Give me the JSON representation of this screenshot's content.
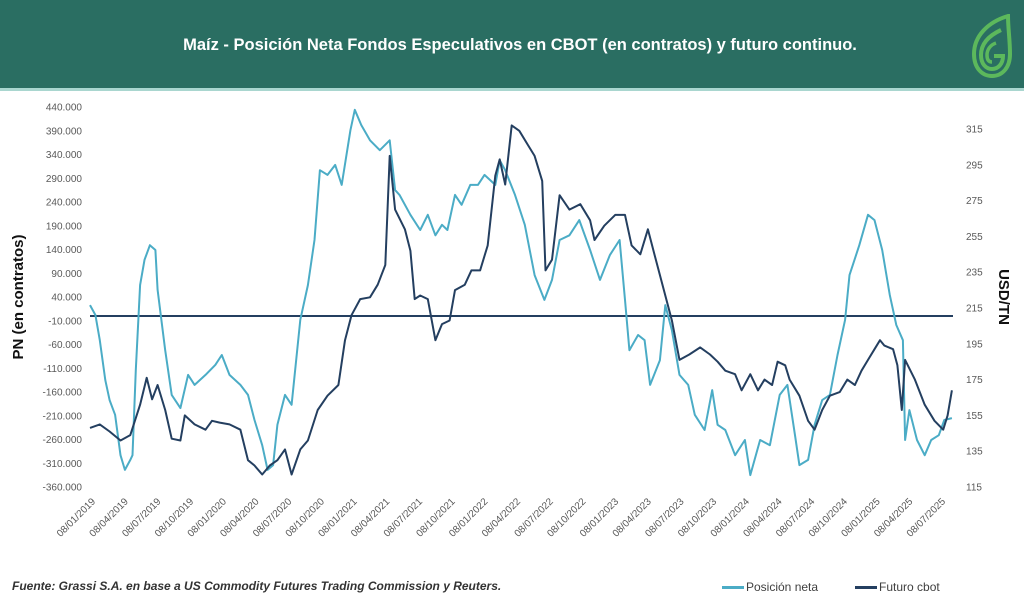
{
  "header": {
    "title": "Maíz - Posición Neta Fondos Especulativos en CBOT (en contratos) y futuro continuo.",
    "logo_text": "G"
  },
  "footer": {
    "source": "Fuente: Grassi S.A. en base a US Commodity  Futures Trading Commission y Reuters."
  },
  "colors": {
    "header_bg": "#2a6e62",
    "posicion": "#4bacc6",
    "futuro": "#243f60",
    "logo": "#5cb85c"
  },
  "chart_data": {
    "type": "line",
    "title": "Maíz - Posición Neta Fondos Especulativos en CBOT (en contratos) y futuro continuo.",
    "x_unit": "months since 08/01/2019",
    "xlim": [
      0,
      79.2
    ],
    "x_tick_labels": [
      "08/01/2019",
      "08/04/2019",
      "08/07/2019",
      "08/10/2019",
      "08/01/2020",
      "08/04/2020",
      "08/07/2020",
      "08/10/2020",
      "08/01/2021",
      "08/04/2021",
      "08/07/2021",
      "08/10/2021",
      "08/01/2022",
      "08/04/2022",
      "08/07/2022",
      "08/10/2022",
      "08/01/2023",
      "08/04/2023",
      "08/07/2023",
      "08/10/2023",
      "08/01/2024",
      "08/04/2024",
      "08/07/2024",
      "08/10/2024",
      "08/01/2025",
      "08/04/2025",
      "08/07/2025"
    ],
    "ylabel_left": "PN  (en contratos)",
    "ylabel_right": "USD/TN",
    "ylim_left": [
      -360000,
      440000
    ],
    "yticks_left": [
      "440.000",
      "390.000",
      "340.000",
      "290.000",
      "240.000",
      "190.000",
      "140.000",
      "90.000",
      "40.000",
      "-10.000",
      "-60.000",
      "-110.000",
      "-160.000",
      "-210.000",
      "-260.000",
      "-310.000",
      "-360.000"
    ],
    "ylim_right": [
      115,
      327.3
    ],
    "yticks_right": [
      "315",
      "295",
      "275",
      "255",
      "235",
      "215",
      "195",
      "175",
      "155",
      "135",
      "115"
    ],
    "reference_line_left": 0,
    "legend_position": "bottom-right",
    "series": [
      {
        "name": "Posición neta",
        "axis": "left",
        "unit": "thousand contracts",
        "points": [
          [
            0,
            23
          ],
          [
            0.5,
            2
          ],
          [
            0.9,
            -51
          ],
          [
            1.4,
            -135
          ],
          [
            1.8,
            -177
          ],
          [
            2.3,
            -208
          ],
          [
            2.8,
            -293
          ],
          [
            3.2,
            -324
          ],
          [
            3.7,
            -303
          ],
          [
            3.9,
            -293
          ],
          [
            4.2,
            -114
          ],
          [
            4.6,
            65
          ],
          [
            5.0,
            118
          ],
          [
            5.5,
            149
          ],
          [
            6.0,
            139
          ],
          [
            6.2,
            55
          ],
          [
            6.9,
            -72
          ],
          [
            7.5,
            -166
          ],
          [
            8.3,
            -194
          ],
          [
            9.0,
            -124
          ],
          [
            9.6,
            -145
          ],
          [
            10.6,
            -124
          ],
          [
            11.5,
            -103
          ],
          [
            12.1,
            -82
          ],
          [
            12.8,
            -124
          ],
          [
            13.8,
            -145
          ],
          [
            14.5,
            -166
          ],
          [
            15.1,
            -219
          ],
          [
            15.8,
            -272
          ],
          [
            16.3,
            -324
          ],
          [
            16.8,
            -314
          ],
          [
            17.2,
            -229
          ],
          [
            17.9,
            -166
          ],
          [
            18.5,
            -187
          ],
          [
            19.3,
            -8
          ],
          [
            20.0,
            65
          ],
          [
            20.6,
            160
          ],
          [
            21.1,
            307
          ],
          [
            21.8,
            297
          ],
          [
            22.5,
            318
          ],
          [
            23.1,
            276
          ],
          [
            23.9,
            391
          ],
          [
            24.3,
            434
          ],
          [
            24.9,
            402
          ],
          [
            25.7,
            370
          ],
          [
            26.6,
            349
          ],
          [
            27.5,
            370
          ],
          [
            28.0,
            265
          ],
          [
            28.4,
            255
          ],
          [
            29.4,
            213
          ],
          [
            30.3,
            181
          ],
          [
            31.0,
            213
          ],
          [
            31.7,
            170
          ],
          [
            32.3,
            192
          ],
          [
            32.8,
            181
          ],
          [
            33.5,
            255
          ],
          [
            34.1,
            234
          ],
          [
            34.9,
            276
          ],
          [
            35.6,
            276
          ],
          [
            36.2,
            297
          ],
          [
            37.2,
            276
          ],
          [
            37.6,
            328
          ],
          [
            38.1,
            307
          ],
          [
            39.0,
            255
          ],
          [
            39.9,
            192
          ],
          [
            40.8,
            86
          ],
          [
            41.7,
            34
          ],
          [
            42.4,
            76
          ],
          [
            43.1,
            160
          ],
          [
            44.0,
            170
          ],
          [
            44.9,
            202
          ],
          [
            45.9,
            139
          ],
          [
            46.8,
            76
          ],
          [
            47.7,
            128
          ],
          [
            48.6,
            160
          ],
          [
            49.1,
            34
          ],
          [
            49.5,
            -72
          ],
          [
            50.3,
            -40
          ],
          [
            50.9,
            -51
          ],
          [
            51.4,
            -145
          ],
          [
            52.3,
            -93
          ],
          [
            52.8,
            23
          ],
          [
            53.4,
            -30
          ],
          [
            54.1,
            -124
          ],
          [
            54.9,
            -145
          ],
          [
            55.5,
            -208
          ],
          [
            56.4,
            -240
          ],
          [
            57.1,
            -156
          ],
          [
            57.6,
            -229
          ],
          [
            58.3,
            -240
          ],
          [
            59.2,
            -293
          ],
          [
            60.1,
            -261
          ],
          [
            60.6,
            -335
          ],
          [
            61.5,
            -261
          ],
          [
            62.4,
            -272
          ],
          [
            63.3,
            -166
          ],
          [
            64.0,
            -145
          ],
          [
            64.7,
            -251
          ],
          [
            65.1,
            -314
          ],
          [
            65.9,
            -303
          ],
          [
            66.5,
            -229
          ],
          [
            67.2,
            -177
          ],
          [
            67.9,
            -166
          ],
          [
            68.6,
            -82
          ],
          [
            69.3,
            -8
          ],
          [
            69.7,
            86
          ],
          [
            70.6,
            149
          ],
          [
            71.4,
            213
          ],
          [
            72.0,
            202
          ],
          [
            72.7,
            139
          ],
          [
            73.4,
            44
          ],
          [
            74.0,
            -19
          ],
          [
            74.6,
            -51
          ],
          [
            74.8,
            -261
          ],
          [
            75.2,
            -198
          ],
          [
            75.9,
            -261
          ],
          [
            76.6,
            -293
          ],
          [
            77.2,
            -261
          ],
          [
            77.9,
            -251
          ],
          [
            78.4,
            -219
          ],
          [
            79.1,
            -215
          ]
        ]
      },
      {
        "name": "Futuro cbot",
        "axis": "right",
        "unit": "USD/TN",
        "points": [
          [
            0,
            148
          ],
          [
            0.9,
            150
          ],
          [
            1.8,
            146
          ],
          [
            2.8,
            141
          ],
          [
            3.7,
            144
          ],
          [
            4.6,
            161
          ],
          [
            5.2,
            176
          ],
          [
            5.7,
            164
          ],
          [
            6.2,
            172
          ],
          [
            6.9,
            158
          ],
          [
            7.5,
            142
          ],
          [
            8.3,
            141
          ],
          [
            8.7,
            155
          ],
          [
            9.6,
            150
          ],
          [
            10.6,
            147
          ],
          [
            11.2,
            152
          ],
          [
            11.9,
            151
          ],
          [
            12.8,
            150
          ],
          [
            13.8,
            147
          ],
          [
            14.5,
            130
          ],
          [
            15.1,
            127
          ],
          [
            15.8,
            122
          ],
          [
            16.5,
            127
          ],
          [
            17.2,
            130
          ],
          [
            17.9,
            136
          ],
          [
            18.5,
            122
          ],
          [
            19.3,
            136
          ],
          [
            20.0,
            141
          ],
          [
            20.9,
            158
          ],
          [
            21.8,
            166
          ],
          [
            22.8,
            172
          ],
          [
            23.4,
            197
          ],
          [
            24.0,
            211
          ],
          [
            24.8,
            220
          ],
          [
            25.7,
            221
          ],
          [
            26.4,
            228
          ],
          [
            27.1,
            239
          ],
          [
            27.5,
            300
          ],
          [
            28.0,
            270
          ],
          [
            28.9,
            259
          ],
          [
            29.4,
            247
          ],
          [
            29.8,
            220
          ],
          [
            30.3,
            222
          ],
          [
            31.0,
            220
          ],
          [
            31.7,
            197
          ],
          [
            32.3,
            206
          ],
          [
            33.0,
            208
          ],
          [
            33.5,
            225
          ],
          [
            34.4,
            228
          ],
          [
            35.0,
            236
          ],
          [
            35.8,
            236
          ],
          [
            36.5,
            250
          ],
          [
            37.2,
            289
          ],
          [
            37.6,
            298
          ],
          [
            38.1,
            284
          ],
          [
            38.7,
            317
          ],
          [
            39.4,
            314
          ],
          [
            40.2,
            306
          ],
          [
            40.8,
            300
          ],
          [
            41.5,
            286
          ],
          [
            41.8,
            236
          ],
          [
            42.4,
            242
          ],
          [
            43.1,
            278
          ],
          [
            44.0,
            270
          ],
          [
            45.0,
            273
          ],
          [
            45.9,
            264
          ],
          [
            46.3,
            253
          ],
          [
            47.2,
            261
          ],
          [
            48.2,
            267
          ],
          [
            49.1,
            267
          ],
          [
            49.7,
            250
          ],
          [
            50.5,
            245
          ],
          [
            51.2,
            259
          ],
          [
            51.8,
            245
          ],
          [
            52.8,
            222
          ],
          [
            53.4,
            208
          ],
          [
            54.1,
            186
          ],
          [
            55.0,
            189
          ],
          [
            56.0,
            193
          ],
          [
            56.9,
            189
          ],
          [
            57.6,
            185
          ],
          [
            58.3,
            180
          ],
          [
            59.2,
            178
          ],
          [
            59.8,
            169
          ],
          [
            60.6,
            178
          ],
          [
            61.3,
            169
          ],
          [
            61.9,
            175
          ],
          [
            62.6,
            172
          ],
          [
            63.1,
            185
          ],
          [
            63.8,
            183
          ],
          [
            64.2,
            175
          ],
          [
            65.1,
            166
          ],
          [
            65.9,
            152
          ],
          [
            66.5,
            147
          ],
          [
            67.2,
            158
          ],
          [
            67.9,
            166
          ],
          [
            68.8,
            168
          ],
          [
            69.5,
            175
          ],
          [
            70.2,
            172
          ],
          [
            70.8,
            180
          ],
          [
            71.4,
            186
          ],
          [
            72.0,
            192
          ],
          [
            72.5,
            197
          ],
          [
            72.9,
            194
          ],
          [
            73.7,
            192
          ],
          [
            74.1,
            183
          ],
          [
            74.5,
            158
          ],
          [
            74.8,
            186
          ],
          [
            75.7,
            175
          ],
          [
            76.6,
            161
          ],
          [
            77.5,
            152
          ],
          [
            78.3,
            147
          ],
          [
            78.7,
            155
          ],
          [
            79.1,
            169
          ]
        ]
      }
    ]
  }
}
